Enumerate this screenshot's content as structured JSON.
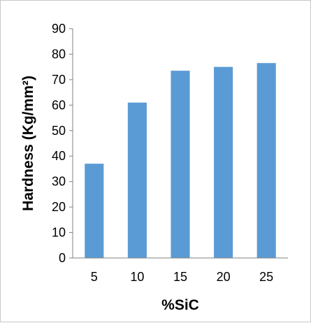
{
  "chart_data": {
    "type": "bar",
    "categories": [
      "5",
      "10",
      "15",
      "20",
      "25"
    ],
    "values": [
      37,
      61,
      73.5,
      75,
      76.5
    ],
    "title": "",
    "xlabel": "%SiC",
    "ylabel": "Hardness (Kg/mm²)",
    "ylim": [
      0,
      90
    ],
    "yticks": [
      "0",
      "10",
      "20",
      "30",
      "40",
      "50",
      "60",
      "70",
      "80",
      "90"
    ],
    "grid": false,
    "legend": "none",
    "bar_color": "#5b9bd5",
    "axis_color": "#808080"
  }
}
